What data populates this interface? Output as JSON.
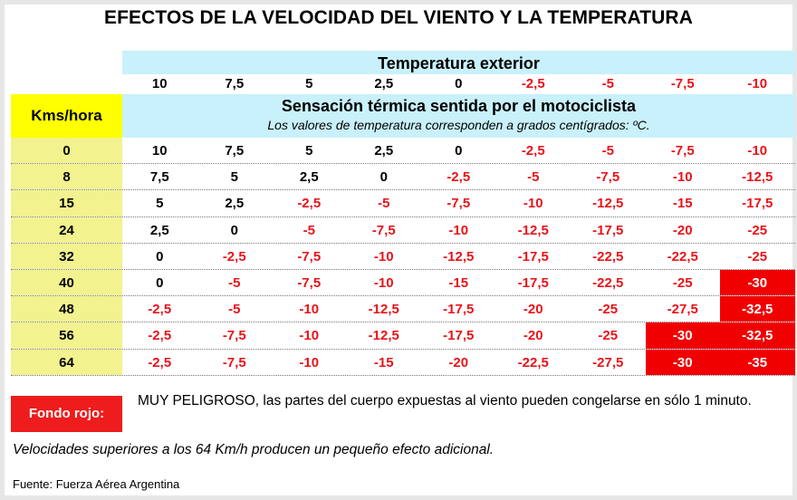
{
  "title": "EFECTOS DE LA VELOCIDAD DEL VIENTO Y LA TEMPERATURA",
  "header": {
    "outside_temp_label": "Temperatura exterior",
    "temps": [
      "10",
      "7,5",
      "5",
      "2,5",
      "0",
      "-2,5",
      "-5",
      "-7,5",
      "-10"
    ],
    "speed_label": "Kms/hora",
    "sensation_label": "Sensación térmica sentida por el motociclista",
    "sensation_sub": "Los valores de temperatura corresponden a grados centígrados: ºC."
  },
  "rows": [
    {
      "kmh": "0",
      "values": [
        "10",
        "7,5",
        "5",
        "2,5",
        "0",
        "-2,5",
        "-5",
        "-7,5",
        "-10"
      ],
      "danger_from": null
    },
    {
      "kmh": "8",
      "values": [
        "7,5",
        "5",
        "2,5",
        "0",
        "-2,5",
        "-5",
        "-7,5",
        "-10",
        "-12,5"
      ],
      "danger_from": null
    },
    {
      "kmh": "15",
      "values": [
        "5",
        "2,5",
        "-2,5",
        "-5",
        "-7,5",
        "-10",
        "-12,5",
        "-15",
        "-17,5"
      ],
      "danger_from": null
    },
    {
      "kmh": "24",
      "values": [
        "2,5",
        "0",
        "-5",
        "-7,5",
        "-10",
        "-12,5",
        "-17,5",
        "-20",
        "-25"
      ],
      "danger_from": null
    },
    {
      "kmh": "32",
      "values": [
        "0",
        "-2,5",
        "-7,5",
        "-10",
        "-12,5",
        "-17,5",
        "-22,5",
        "-22,5",
        "-25"
      ],
      "danger_from": null
    },
    {
      "kmh": "40",
      "values": [
        "0",
        "-5",
        "-7,5",
        "-10",
        "-15",
        "-17,5",
        "-22,5",
        "-25",
        "-30"
      ],
      "danger_from": 8
    },
    {
      "kmh": "48",
      "values": [
        "-2,5",
        "-5",
        "-10",
        "-12,5",
        "-17,5",
        "-20",
        "-25",
        "-27,5",
        "-32,5"
      ],
      "danger_from": 8
    },
    {
      "kmh": "56",
      "values": [
        "-2,5",
        "-7,5",
        "-10",
        "-12,5",
        "-17,5",
        "-20",
        "-25",
        "-30",
        "-32,5"
      ],
      "danger_from": 7
    },
    {
      "kmh": "64",
      "values": [
        "-2,5",
        "-7,5",
        "-10",
        "-15",
        "-20",
        "-22,5",
        "-27,5",
        "-30",
        "-35"
      ],
      "danger_from": 7
    }
  ],
  "legend": {
    "label": "Fondo rojo:",
    "text": "MUY PELIGROSO, las partes del cuerpo expuestas al viento pueden congelarse en sólo 1 minuto."
  },
  "note": "Velocidades superiores a los 64 Km/h producen un pequeño efecto adicional.",
  "source": "Fuente: Fuerza Aérea Argentina",
  "colors": {
    "header_bg": "#c9f1fb",
    "speed_head_bg": "#ffff00",
    "speed_col_bg": "#f2f28f",
    "negative_text": "#e8141a",
    "danger_bg": "#f00000"
  }
}
